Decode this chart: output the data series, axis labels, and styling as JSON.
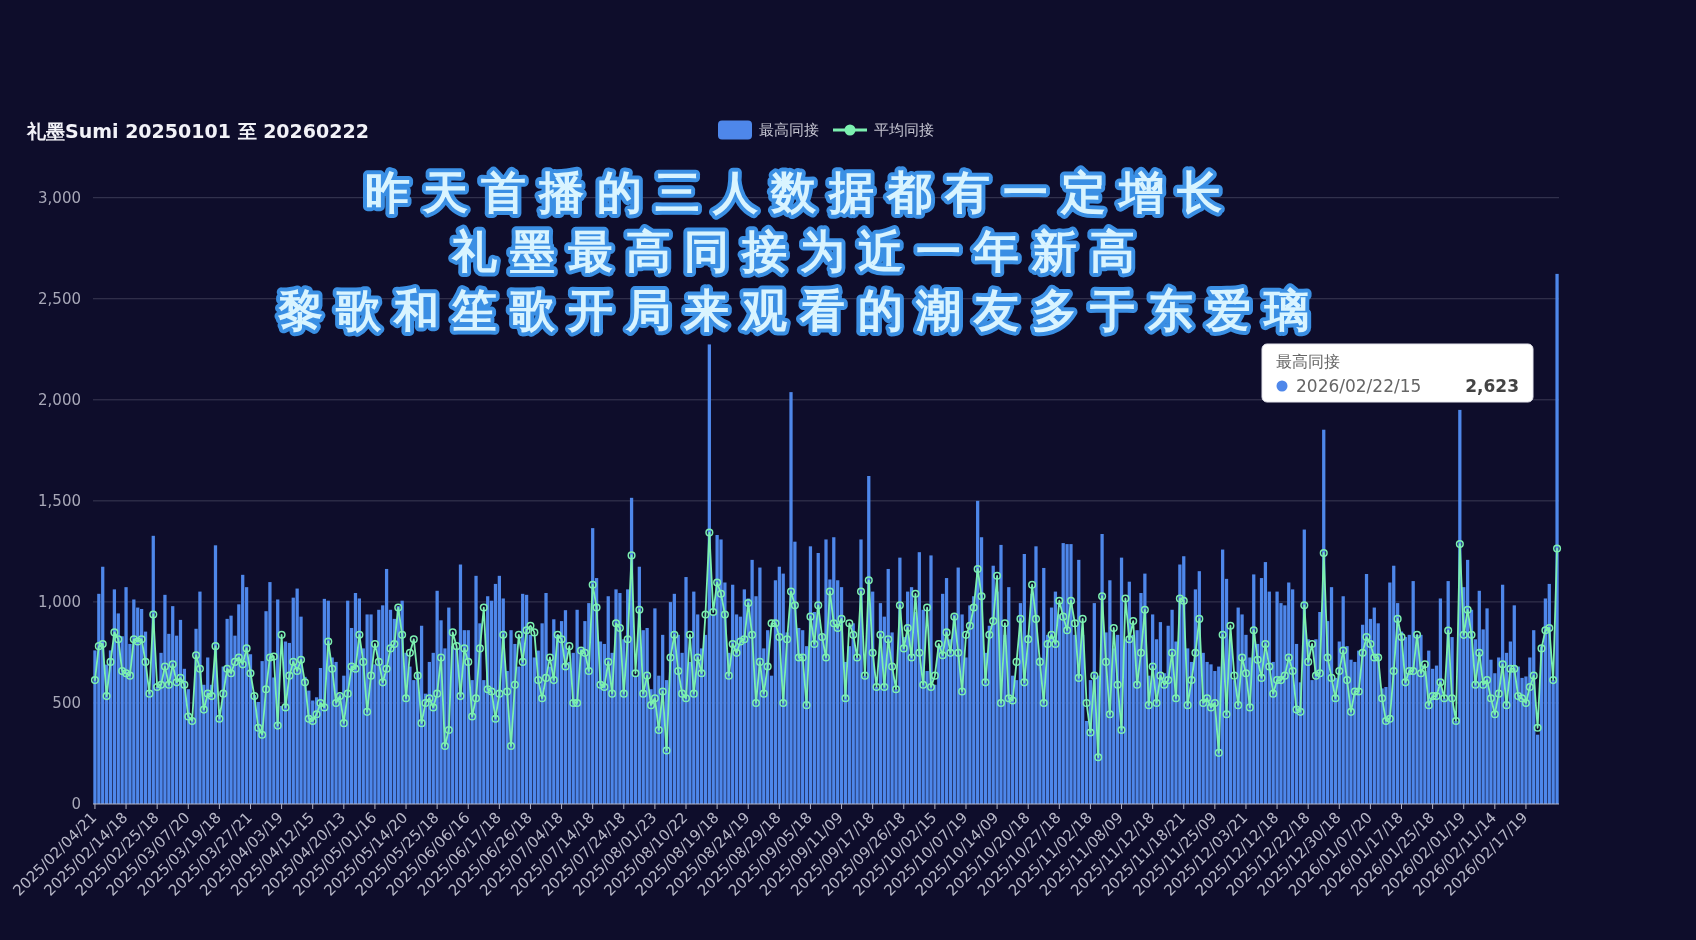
{
  "chart_data": {
    "type": "bar",
    "title": "礼墨Sumi 20250101 至 20260222",
    "categories": [
      "2025/02/04/21",
      null,
      null,
      null,
      null,
      null,
      null,
      null,
      "2025/02/14/18",
      null,
      null,
      null,
      null,
      null,
      null,
      null,
      "2025/02/25/18",
      null,
      null,
      null,
      null,
      null,
      null,
      null,
      "2025/03/07/20",
      null,
      null,
      null,
      null,
      null,
      null,
      null,
      "2025/03/19/18",
      null,
      null,
      null,
      null,
      null,
      null,
      null,
      "2025/03/27/21",
      null,
      null,
      null,
      null,
      null,
      null,
      null,
      "2025/04/03/19",
      null,
      null,
      null,
      null,
      null,
      null,
      null,
      "2025/04/12/15",
      null,
      null,
      null,
      null,
      null,
      null,
      null,
      "2025/04/20/13",
      null,
      null,
      null,
      null,
      null,
      null,
      null,
      "2025/05/01/16",
      null,
      null,
      null,
      null,
      null,
      null,
      null,
      "2025/05/14/20",
      null,
      null,
      null,
      null,
      null,
      null,
      null,
      "2025/05/25/18",
      null,
      null,
      null,
      null,
      null,
      null,
      null,
      "2025/06/06/16",
      null,
      null,
      null,
      null,
      null,
      null,
      null,
      "2025/06/17/18",
      null,
      null,
      null,
      null,
      null,
      null,
      null,
      "2025/06/26/18",
      null,
      null,
      null,
      null,
      null,
      null,
      null,
      "2025/07/04/18",
      null,
      null,
      null,
      null,
      null,
      null,
      null,
      "2025/07/14/18",
      null,
      null,
      null,
      null,
      null,
      null,
      null,
      "2025/07/24/18",
      null,
      null,
      null,
      null,
      null,
      null,
      null,
      "2025/08/01/23",
      null,
      null,
      null,
      null,
      null,
      null,
      null,
      "2025/08/10/22",
      null,
      null,
      null,
      null,
      null,
      null,
      null,
      "2025/08/19/18",
      null,
      null,
      null,
      null,
      null,
      null,
      null,
      "2025/08/24/19",
      null,
      null,
      null,
      null,
      null,
      null,
      null,
      "2025/08/29/18",
      null,
      null,
      null,
      null,
      null,
      null,
      null,
      "2025/09/05/18",
      null,
      null,
      null,
      null,
      null,
      null,
      null,
      "2025/09/11/09",
      null,
      null,
      null,
      null,
      null,
      null,
      null,
      "2025/09/17/18",
      null,
      null,
      null,
      null,
      null,
      null,
      null,
      "2025/09/26/18",
      null,
      null,
      null,
      null,
      null,
      null,
      null,
      "2025/10/02/15",
      null,
      null,
      null,
      null,
      null,
      null,
      null,
      "2025/10/07/19",
      null,
      null,
      null,
      null,
      null,
      null,
      null,
      "2025/10/14/09",
      null,
      null,
      null,
      null,
      null,
      null,
      null,
      "2025/10/20/18",
      null,
      null,
      null,
      null,
      null,
      null,
      null,
      "2025/10/27/18",
      null,
      null,
      null,
      null,
      null,
      null,
      null,
      "2025/11/02/18",
      null,
      null,
      null,
      null,
      null,
      null,
      null,
      "2025/11/08/09",
      null,
      null,
      null,
      null,
      null,
      null,
      null,
      "2025/11/12/18",
      null,
      null,
      null,
      null,
      null,
      null,
      null,
      "2025/11/18/21",
      null,
      null,
      null,
      null,
      null,
      null,
      null,
      "2025/11/25/09",
      null,
      null,
      null,
      null,
      null,
      null,
      null,
      "2025/12/03/21",
      null,
      null,
      null,
      null,
      null,
      null,
      null,
      "2025/12/12/18",
      null,
      null,
      null,
      null,
      null,
      null,
      null,
      "2025/12/22/18",
      null,
      null,
      null,
      null,
      null,
      null,
      null,
      "2025/12/30/18",
      null,
      null,
      null,
      null,
      null,
      null,
      null,
      "2026/01/07/20",
      null,
      null,
      null,
      null,
      null,
      null,
      null,
      "2026/01/17/18",
      null,
      null,
      null,
      null,
      null,
      null,
      null,
      "2026/01/25/18",
      null,
      null,
      null,
      null,
      null,
      null,
      null,
      "2026/02/01/19",
      null,
      null,
      null,
      null,
      null,
      null,
      null,
      "2026/02/11/14",
      null,
      null,
      null,
      null,
      null,
      null,
      null,
      "2026/02/17/19",
      null,
      null,
      null,
      null,
      null,
      null,
      null,
      null
    ],
    "series": [
      {
        "name": "最高同接",
        "type": "bar",
        "color": "#4e87ea",
        "values": [
          760,
          1040,
          1174,
          690,
          760,
          1062,
          943,
          830,
          1073,
          792,
          1012,
          972,
          965,
          853,
          557,
          1327,
          579,
          748,
          1035,
          842,
          979,
          833,
          911,
          669,
          568,
          422,
          867,
          1051,
          590,
          725,
          590,
          1280,
          433,
          680,
          916,
          932,
          833,
          988,
          1134,
          1073,
          741,
          539,
          505,
          707,
          954,
          1098,
          626,
          1012,
          485,
          804,
          797,
          1021,
          1066,
          927,
          629,
          561,
          512,
          528,
          673,
          1015,
          1006,
          725,
          703,
          546,
          635,
          1006,
          871,
          1044,
          1017,
          770,
          938,
          938,
          691,
          961,
          983,
          1163,
          961,
          916,
          979,
          1006,
          748,
          680,
          613,
          647,
          882,
          546,
          703,
          748,
          1055,
          909,
          770,
          972,
          781,
          770,
          1185,
          860,
          860,
          613,
          1129,
          894,
          613,
          1028,
          1006,
          1089,
          1129,
          1017,
          658,
          860,
          792,
          680,
          1040,
          1035,
          837,
          725,
          759,
          894,
          1044,
          680,
          914,
          837,
          905,
          959,
          703,
          748,
          961,
          770,
          905,
          994,
          1365,
          1118,
          804,
          792,
          1028,
          748,
          1062,
          1044,
          815,
          1062,
          1515,
          635,
          1174,
          860,
          871,
          568,
          968,
          635,
          837,
          613,
          999,
          1040,
          837,
          748,
          1123,
          703,
          1051,
          938,
          770,
          837,
          2274,
          938,
          1331,
          1309,
          1096,
          748,
          1085,
          938,
          927,
          1062,
          1017,
          1208,
          1028,
          1170,
          770,
          860,
          635,
          1107,
          1174,
          1140,
          849,
          2038,
          1298,
          871,
          860,
          781,
          1275,
          950,
          1242,
          837,
          1309,
          1111,
          1320,
          1107,
          1073,
          703,
          781,
          894,
          725,
          1309,
          635,
          1623,
          1051,
          579,
          994,
          927,
          1163,
          849,
          568,
          1219,
          826,
          1051,
          1073,
          950,
          1246,
          961,
          658,
          1230,
          590,
          781,
          1040,
          1118,
          815,
          938,
          1170,
          938,
          725,
          983,
          1028,
          1500,
          1320,
          748,
          882,
          1179,
          1051,
          1282,
          837,
          1073,
          635,
          613,
          994,
          1237,
          837,
          1040,
          1275,
          725,
          1168,
          837,
          972,
          1051,
          938,
          1291,
          1286,
          1286,
          837,
          1208,
          837,
          411,
          613,
          994,
          635,
          1336,
          849,
          1107,
          770,
          837,
          1219,
          815,
          1100,
          837,
          860,
          1044,
          1140,
          635,
          938,
          815,
          900,
          647,
          882,
          961,
          804,
          1185,
          1226,
          770,
          703,
          1062,
          1152,
          748,
          703,
          691,
          658,
          680,
          1259,
          1114,
          815,
          613,
          972,
          938,
          837,
          725,
          1136,
          792,
          1118,
          1197,
          1051,
          703,
          1051,
          994,
          983,
          1096,
          1062,
          792,
          602,
          1358,
          815,
          613,
          815,
          950,
          1852,
          905,
          1073,
          624,
          804,
          1028,
          781,
          714,
          703,
          759,
          887,
          1138,
          916,
          972,
          894,
          572,
          579,
          1096,
          1179,
          994,
          853,
          826,
          837,
          1103,
          837,
          837,
          658,
          759,
          669,
          685,
          1017,
          523,
          1103,
          826,
          411,
          1950,
          1073,
          1208,
          961,
          815,
          1055,
          864,
          968,
          714,
          647,
          725,
          1085,
          748,
          804,
          983,
          680,
          624,
          631,
          725,
          860,
          343,
          781,
          1017,
          1089,
          613,
          2623
        ]
      },
      {
        "name": "平均同接",
        "type": "line",
        "color": "#7cf0b0",
        "values": [
          613,
          781,
          792,
          534,
          703,
          849,
          815,
          658,
          647,
          635,
          815,
          804,
          815,
          703,
          546,
          938,
          579,
          590,
          680,
          590,
          691,
          602,
          624,
          590,
          433,
          411,
          736,
          669,
          467,
          546,
          534,
          781,
          422,
          546,
          669,
          647,
          703,
          725,
          691,
          770,
          647,
          534,
          377,
          343,
          568,
          725,
          730,
          388,
          837,
          478,
          635,
          703,
          658,
          714,
          602,
          422,
          411,
          444,
          500,
          478,
          804,
          669,
          500,
          534,
          400,
          546,
          680,
          669,
          837,
          703,
          456,
          635,
          792,
          703,
          602,
          669,
          770,
          792,
          972,
          837,
          523,
          748,
          815,
          635,
          400,
          500,
          523,
          478,
          546,
          725,
          287,
          366,
          849,
          781,
          534,
          770,
          703,
          433,
          523,
          770,
          972,
          568,
          557,
          422,
          546,
          837,
          557,
          287,
          590,
          837,
          703,
          860,
          882,
          849,
          613,
          523,
          624,
          725,
          613,
          837,
          815,
          680,
          781,
          500,
          500,
          759,
          748,
          658,
          1085,
          972,
          590,
          579,
          703,
          546,
          894,
          871,
          546,
          815,
          1230,
          647,
          961,
          546,
          635,
          489,
          523,
          366,
          557,
          265,
          725,
          837,
          658,
          546,
          523,
          837,
          546,
          725,
          647,
          938,
          1343,
          950,
          1096,
          1040,
          938,
          635,
          792,
          748,
          804,
          815,
          994,
          837,
          500,
          703,
          546,
          680,
          894,
          894,
          826,
          500,
          815,
          1051,
          983,
          725,
          725,
          489,
          927,
          792,
          983,
          826,
          725,
          1051,
          894,
          871,
          916,
          523,
          894,
          837,
          725,
          1051,
          635,
          1107,
          748,
          579,
          837,
          579,
          815,
          680,
          568,
          983,
          770,
          871,
          725,
          1040,
          748,
          590,
          972,
          579,
          635,
          792,
          736,
          849,
          748,
          927,
          748,
          557,
          837,
          882,
          972,
          1163,
          1028,
          602,
          837,
          905,
          1129,
          500,
          894,
          523,
          512,
          703,
          916,
          602,
          815,
          1085,
          916,
          703,
          500,
          792,
          837,
          792,
          1006,
          927,
          860,
          1006,
          894,
          624,
          916,
          500,
          354,
          635,
          231,
          1028,
          703,
          444,
          871,
          590,
          366,
          1017,
          815,
          905,
          590,
          748,
          961,
          489,
          680,
          500,
          635,
          590,
          613,
          748,
          523,
          1017,
          1006,
          489,
          613,
          748,
          916,
          500,
          523,
          478,
          500,
          253,
          837,
          444,
          882,
          635,
          489,
          725,
          647,
          478,
          860,
          714,
          624,
          792,
          680,
          546,
          613,
          613,
          635,
          725,
          658,
          467,
          456,
          983,
          703,
          792,
          635,
          647,
          1242,
          725,
          624,
          523,
          658,
          759,
          613,
          456,
          557,
          557,
          748,
          826,
          792,
          725,
          725,
          523,
          411,
          422,
          658,
          916,
          826,
          602,
          658,
          658,
          837,
          647,
          691,
          489,
          534,
          534,
          602,
          523,
          858,
          523,
          411,
          1286,
          837,
          961,
          837,
          590,
          748,
          590,
          613,
          523,
          444,
          546,
          691,
          489,
          669,
          669,
          534,
          523,
          500,
          579,
          635,
          377,
          770,
          860,
          871,
          613,
          1264
        ]
      }
    ],
    "ylim": [
      0,
      3000
    ],
    "yticks": [
      0,
      500,
      {
        "value": 1000,
        "label": "1,000"
      },
      {
        "value": 1500,
        "label": "1,500"
      },
      {
        "value": 2000,
        "label": "2,000"
      },
      {
        "value": 2500,
        "label": "2,500"
      },
      {
        "value": 3000,
        "label": "3,000"
      }
    ],
    "grid": "y",
    "legend": "top",
    "marker": "circle",
    "annotations": [
      "昨天首播的三人数据都有一定增长",
      "礼墨最高同接为近一年新高",
      "黎歌和笙歌开局来观看的潮友多于东爱璃",
      "最高同接",
      "2026/02/22/15",
      "2,623"
    ]
  }
}
